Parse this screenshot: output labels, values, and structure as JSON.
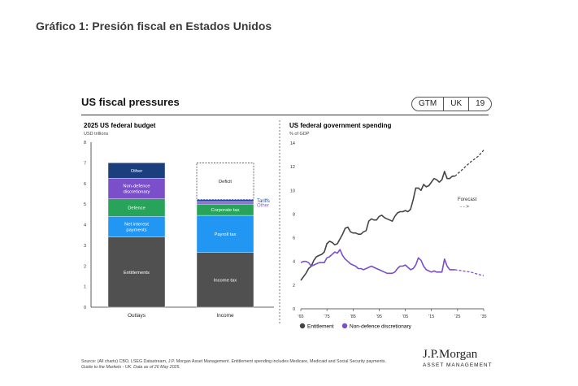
{
  "page_title": "Gráfico 1: Presión fiscal en Estados Unidos",
  "panel_title": "US fiscal pressures",
  "badge": [
    "GTM",
    "UK",
    "19"
  ],
  "colors": {
    "entitlements": "#505050",
    "net_interest": "#2196f3",
    "defence": "#27a35a",
    "non_defence": "#7b4fc9",
    "other": "#1a3f7c",
    "income_tax": "#505050",
    "payroll_tax": "#2196f3",
    "corporate_tax": "#27a35a",
    "tariffs": "#1f4fa8",
    "income_other": "#8a63d2"
  },
  "chart_data": [
    {
      "type": "bar",
      "stacked": true,
      "title": "2025 US federal budget",
      "ylabel": "USD trillions",
      "ylim": [
        0,
        8
      ],
      "yticks": [
        "0",
        "1",
        "2",
        "3",
        "4",
        "5",
        "6",
        "7",
        "8"
      ],
      "categories": [
        "Outlays",
        "Income"
      ],
      "series": [
        {
          "name": "Entitlements",
          "category": "Outlays",
          "start": 0,
          "value": 3.4,
          "color_key": "entitlements",
          "label": "Entitlements"
        },
        {
          "name": "Net interest payments",
          "category": "Outlays",
          "start": 3.4,
          "value": 1.0,
          "color_key": "net_interest",
          "label": "Net interest payments"
        },
        {
          "name": "Defence",
          "category": "Outlays",
          "start": 4.4,
          "value": 0.85,
          "color_key": "defence",
          "label": "Defence"
        },
        {
          "name": "Non-defence discretionary",
          "category": "Outlays",
          "start": 5.25,
          "value": 1.0,
          "color_key": "non_defence",
          "label": "Non-defence discretionary"
        },
        {
          "name": "Other",
          "category": "Outlays",
          "start": 6.25,
          "value": 0.75,
          "color_key": "other",
          "label": "Other"
        },
        {
          "name": "Income tax",
          "category": "Income",
          "start": 0,
          "value": 2.65,
          "color_key": "income_tax",
          "label": "Income tax"
        },
        {
          "name": "Payroll tax",
          "category": "Income",
          "start": 2.65,
          "value": 1.8,
          "color_key": "payroll_tax",
          "label": "Payroll tax"
        },
        {
          "name": "Corporate tax",
          "category": "Income",
          "start": 4.45,
          "value": 0.55,
          "color_key": "corporate_tax",
          "label": "Corporate tax"
        },
        {
          "name": "Other",
          "category": "Income",
          "start": 5.0,
          "value": 0.12,
          "color_key": "income_other",
          "label": ""
        },
        {
          "name": "Tariffs",
          "category": "Income",
          "start": 5.12,
          "value": 0.1,
          "color_key": "tariffs",
          "label": ""
        },
        {
          "name": "Deficit",
          "category": "Income",
          "start": 5.22,
          "value": 1.78,
          "color_key": "",
          "label": "Deficit",
          "style": "dashed"
        }
      ],
      "side_labels": [
        {
          "text": "Tariffs",
          "y": 5.17,
          "color_key": "tariffs"
        },
        {
          "text": "Other",
          "y": 4.95,
          "color_key": "income_other"
        }
      ]
    },
    {
      "type": "line",
      "title": "US federal government spending",
      "ylabel": "% of GDP",
      "ylim": [
        0,
        14
      ],
      "yticks": [
        "0",
        "2",
        "4",
        "6",
        "8",
        "10",
        "12",
        "14"
      ],
      "xlim": [
        1965,
        2035
      ],
      "xticks": [
        {
          "value": 1965,
          "label": "'65"
        },
        {
          "value": 1975,
          "label": "'75"
        },
        {
          "value": 1985,
          "label": "'85"
        },
        {
          "value": 1995,
          "label": "'95"
        },
        {
          "value": 2005,
          "label": "'05"
        },
        {
          "value": 2015,
          "label": "'15"
        },
        {
          "value": 2025,
          "label": "'25"
        },
        {
          "value": 2035,
          "label": "'35"
        }
      ],
      "forecast_label": "Forecast",
      "forecast_arrow": "- - >",
      "series": [
        {
          "name": "Entitlement",
          "color": "#444444",
          "x": [
            1965,
            1966,
            1967,
            1968,
            1969,
            1970,
            1971,
            1972,
            1973,
            1974,
            1975,
            1976,
            1977,
            1978,
            1979,
            1980,
            1981,
            1982,
            1983,
            1984,
            1985,
            1986,
            1987,
            1988,
            1989,
            1990,
            1991,
            1992,
            1993,
            1994,
            1995,
            1996,
            1997,
            1998,
            1999,
            2000,
            2001,
            2002,
            2003,
            2004,
            2005,
            2006,
            2007,
            2008,
            2009,
            2010,
            2011,
            2012,
            2013,
            2014,
            2015,
            2016,
            2017,
            2018,
            2019,
            2020,
            2021,
            2022,
            2023,
            2024
          ],
          "values": [
            2.4,
            2.7,
            3.0,
            3.4,
            3.6,
            4.1,
            4.4,
            4.5,
            4.6,
            4.8,
            5.5,
            5.7,
            5.6,
            5.4,
            5.5,
            5.9,
            6.3,
            6.8,
            6.9,
            6.5,
            6.4,
            6.4,
            6.3,
            6.3,
            6.5,
            6.6,
            7.4,
            7.6,
            7.5,
            7.5,
            7.8,
            7.9,
            7.7,
            7.6,
            7.5,
            7.4,
            7.8,
            8.1,
            8.2,
            8.2,
            8.3,
            8.2,
            8.4,
            9.2,
            10.2,
            10.2,
            10.0,
            10.5,
            10.3,
            10.4,
            10.7,
            11.0,
            10.9,
            10.7,
            10.9,
            11.6,
            11.0,
            11.0,
            11.2,
            11.2
          ],
          "forecast_x": [
            2024,
            2027,
            2030,
            2033,
            2035
          ],
          "forecast_values": [
            11.2,
            11.8,
            12.4,
            12.9,
            13.4
          ]
        },
        {
          "name": "Non-defence discretionary",
          "color": "#7b4fc9",
          "x": [
            1965,
            1966,
            1967,
            1968,
            1969,
            1970,
            1971,
            1972,
            1973,
            1974,
            1975,
            1976,
            1977,
            1978,
            1979,
            1980,
            1981,
            1982,
            1983,
            1984,
            1985,
            1986,
            1987,
            1988,
            1989,
            1990,
            1991,
            1992,
            1993,
            1994,
            1995,
            1996,
            1997,
            1998,
            1999,
            2000,
            2001,
            2002,
            2003,
            2004,
            2005,
            2006,
            2007,
            2008,
            2009,
            2010,
            2011,
            2012,
            2013,
            2014,
            2015,
            2016,
            2017,
            2018,
            2019,
            2020,
            2021,
            2022,
            2023,
            2024
          ],
          "values": [
            3.9,
            4.0,
            4.0,
            3.9,
            3.6,
            3.7,
            3.8,
            3.9,
            3.9,
            3.9,
            4.3,
            4.4,
            4.6,
            4.8,
            4.7,
            5.0,
            4.5,
            4.2,
            4.0,
            3.8,
            3.7,
            3.6,
            3.4,
            3.4,
            3.3,
            3.4,
            3.5,
            3.6,
            3.5,
            3.4,
            3.3,
            3.2,
            3.1,
            3.0,
            3.0,
            3.0,
            3.1,
            3.4,
            3.6,
            3.6,
            3.7,
            3.5,
            3.3,
            3.4,
            3.7,
            4.3,
            4.1,
            3.6,
            3.3,
            3.2,
            3.1,
            3.2,
            3.1,
            3.1,
            3.1,
            4.2,
            3.6,
            3.3,
            3.3,
            3.3
          ],
          "forecast_x": [
            2024,
            2027,
            2030,
            2033,
            2035
          ],
          "forecast_values": [
            3.3,
            3.2,
            3.1,
            2.9,
            2.8
          ]
        }
      ],
      "legend": [
        "Entitlement",
        "Non-defence discretionary"
      ]
    }
  ],
  "footer": {
    "line1": "Source: (All charts) CBO, LSEG Datastream, J.P. Morgan Asset Management. Entitlement spending includes Medicare, Medicaid and Social Security payments.",
    "line2": "Guide to the Markets - UK. Data as of 26 May 2025."
  },
  "logo": {
    "name": "J.P.Morgan",
    "sub": "ASSET MANAGEMENT"
  }
}
